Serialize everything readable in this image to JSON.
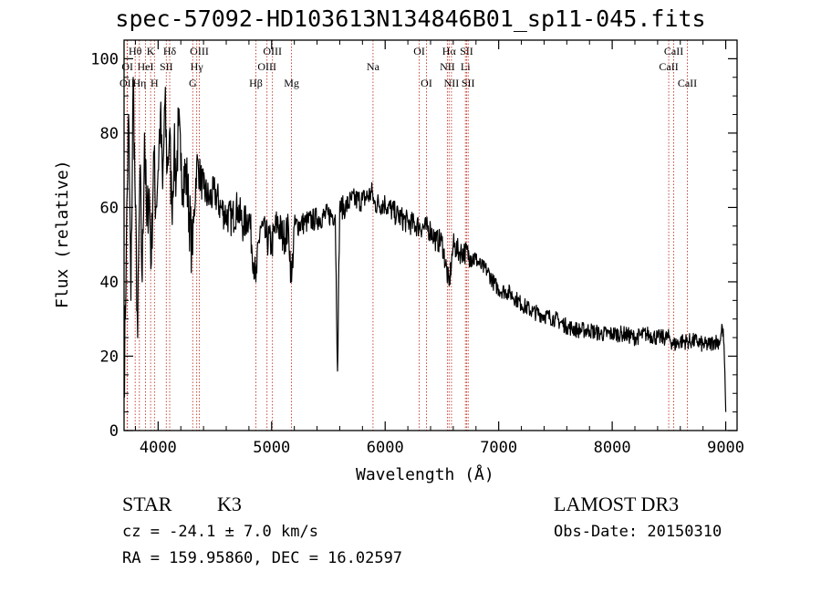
{
  "figure": {
    "title": "spec-57092-HD103613N134846B01_sp11-045.fits",
    "object_class": "STAR",
    "object_subclass": "K3",
    "survey": "LAMOST DR3",
    "cz_text": "cz = -24.1 ± 7.0 km/s",
    "obs_date_text": "Obs-Date: 20150310",
    "radec_text": "RA = 159.95860, DEC =  16.02597"
  },
  "chart_data": {
    "type": "line",
    "title": "spec-57092-HD103613N134846B01_sp11-045.fits",
    "xlabel": "Wavelength (Å)",
    "ylabel": "Flux (relative)",
    "xlim": [
      3700,
      9100
    ],
    "ylim": [
      0,
      105
    ],
    "x_ticks": [
      4000,
      5000,
      6000,
      7000,
      8000,
      9000
    ],
    "y_ticks": [
      0,
      20,
      40,
      60,
      80,
      100
    ],
    "series": [
      {
        "name": "flux",
        "x": [
          3700,
          3720,
          3740,
          3760,
          3780,
          3800,
          3820,
          3840,
          3860,
          3880,
          3900,
          3920,
          3940,
          3960,
          3980,
          4000,
          4020,
          4040,
          4060,
          4080,
          4100,
          4120,
          4140,
          4160,
          4180,
          4200,
          4250,
          4300,
          4340,
          4400,
          4450,
          4500,
          4550,
          4600,
          4650,
          4700,
          4750,
          4800,
          4861,
          4900,
          4950,
          5000,
          5050,
          5100,
          5150,
          5175,
          5200,
          5300,
          5400,
          5500,
          5560,
          5580,
          5600,
          5650,
          5700,
          5800,
          5890,
          5900,
          6000,
          6100,
          6200,
          6300,
          6400,
          6450,
          6500,
          6563,
          6600,
          6650,
          6700,
          6750,
          6800,
          6850,
          6900,
          6950,
          7000,
          7100,
          7200,
          7300,
          7400,
          7500,
          7600,
          7700,
          7800,
          7900,
          8000,
          8100,
          8200,
          8300,
          8400,
          8500,
          8542,
          8600,
          8662,
          8700,
          8750,
          8800,
          8850,
          8900,
          8950,
          8970,
          8985,
          9000
        ],
        "values": [
          10,
          50,
          85,
          35,
          95,
          60,
          25,
          70,
          40,
          80,
          55,
          65,
          45,
          75,
          60,
          70,
          85,
          65,
          88,
          70,
          80,
          60,
          75,
          68,
          82,
          70,
          68,
          48,
          72,
          65,
          62,
          64,
          60,
          58,
          57,
          60,
          55,
          58,
          40,
          55,
          52,
          50,
          56,
          52,
          54,
          40,
          55,
          56,
          57,
          58,
          58,
          16,
          60,
          60,
          62,
          62,
          64,
          61,
          61,
          58,
          56,
          55,
          54,
          51,
          51,
          39,
          50,
          48,
          48,
          47,
          46,
          44,
          43,
          40,
          38,
          37,
          34,
          32,
          31,
          30,
          28,
          27,
          27,
          26,
          26,
          26,
          25,
          26,
          25,
          25,
          23,
          24,
          24,
          24,
          24,
          23,
          23,
          24,
          24,
          28,
          23,
          5
        ]
      }
    ],
    "line_markers": [
      {
        "label": "Hθ",
        "wavelength": 3798,
        "row": 1
      },
      {
        "label": "OI",
        "wavelength": 3730,
        "row": 2
      },
      {
        "label": "OII",
        "wavelength": 3727,
        "row": 3
      },
      {
        "label": "K",
        "wavelength": 3934,
        "row": 1
      },
      {
        "label": "HeI",
        "wavelength": 3889,
        "row": 2
      },
      {
        "label": "Hη",
        "wavelength": 3835,
        "row": 3
      },
      {
        "label": "H",
        "wavelength": 3968,
        "row": 3
      },
      {
        "label": "SII",
        "wavelength": 4072,
        "row": 2
      },
      {
        "label": "Hδ",
        "wavelength": 4102,
        "row": 1
      },
      {
        "label": "OIII",
        "wavelength": 4363,
        "row": 1
      },
      {
        "label": "Hγ",
        "wavelength": 4340,
        "row": 2
      },
      {
        "label": "G",
        "wavelength": 4305,
        "row": 3
      },
      {
        "label": "Hβ",
        "wavelength": 4861,
        "row": 3
      },
      {
        "label": "OIII",
        "wavelength": 5007,
        "row": 1
      },
      {
        "label": "OIII",
        "wavelength": 4959,
        "row": 2
      },
      {
        "label": "Mg",
        "wavelength": 5175,
        "row": 3
      },
      {
        "label": "Na",
        "wavelength": 5893,
        "row": 2
      },
      {
        "label": "OI",
        "wavelength": 6300,
        "row": 1
      },
      {
        "label": "OI",
        "wavelength": 6364,
        "row": 3
      },
      {
        "label": "Hα",
        "wavelength": 6563,
        "row": 1
      },
      {
        "label": "NII",
        "wavelength": 6548,
        "row": 2
      },
      {
        "label": "NII",
        "wavelength": 6584,
        "row": 3
      },
      {
        "label": "SII",
        "wavelength": 6717,
        "row": 1
      },
      {
        "label": "Li",
        "wavelength": 6707,
        "row": 2
      },
      {
        "label": "SII",
        "wavelength": 6731,
        "row": 3
      },
      {
        "label": "CaII",
        "wavelength": 8542,
        "row": 1
      },
      {
        "label": "CaII",
        "wavelength": 8498,
        "row": 2
      },
      {
        "label": "CaII",
        "wavelength": 8662,
        "row": 3
      }
    ]
  }
}
